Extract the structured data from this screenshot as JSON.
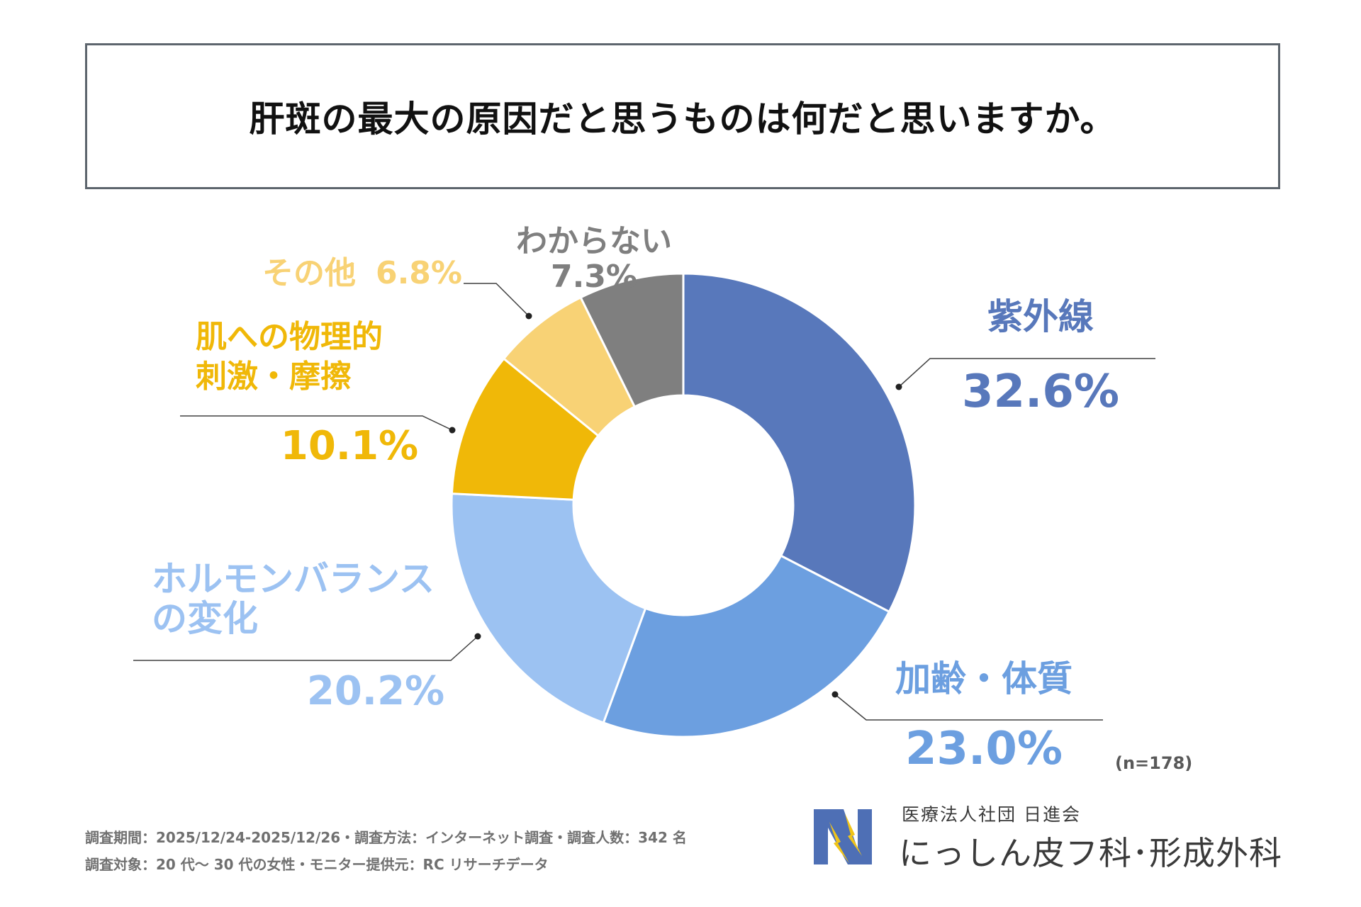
{
  "title": "肝斑の最大の原因だと思うものは何だと思いますか。",
  "sample_size": "(n=178)",
  "footer": {
    "line1": "調査期間：2025/12/24-2025/12/26・調査方法：インターネット調査・調査人数：342 名",
    "line2": "調査対象：20 代～ 30 代の女性・モニター提供元：RC リサーチデータ"
  },
  "brand": {
    "org": "医療法人社団 日進会",
    "clinic": "にっしん皮フ科･形成外科"
  },
  "chart_data": {
    "type": "pie",
    "donut": true,
    "start": "top, clockwise",
    "slices": [
      {
        "label_lines": [
          "紫外線"
        ],
        "value": 32.6,
        "value_label": "32.6%",
        "color": "#5878bb"
      },
      {
        "label_lines": [
          "加齢・体質"
        ],
        "value": 23.0,
        "value_label": "23.0%",
        "color": "#6c9fe0"
      },
      {
        "label_lines": [
          "ホルモンバランス",
          "の変化"
        ],
        "value": 20.2,
        "value_label": "20.2%",
        "color": "#9cc2f2"
      },
      {
        "label_lines": [
          "肌への物理的",
          "刺激・摩擦"
        ],
        "value": 10.1,
        "value_label": "10.1%",
        "color": "#f0b808"
      },
      {
        "label_lines": [
          "その他"
        ],
        "value": 6.8,
        "value_label": "6.8%",
        "color": "#f8d275"
      },
      {
        "label_lines": [
          "わからない"
        ],
        "value": 7.3,
        "value_label": "7.3%",
        "color": "#7f7f7f"
      }
    ]
  }
}
